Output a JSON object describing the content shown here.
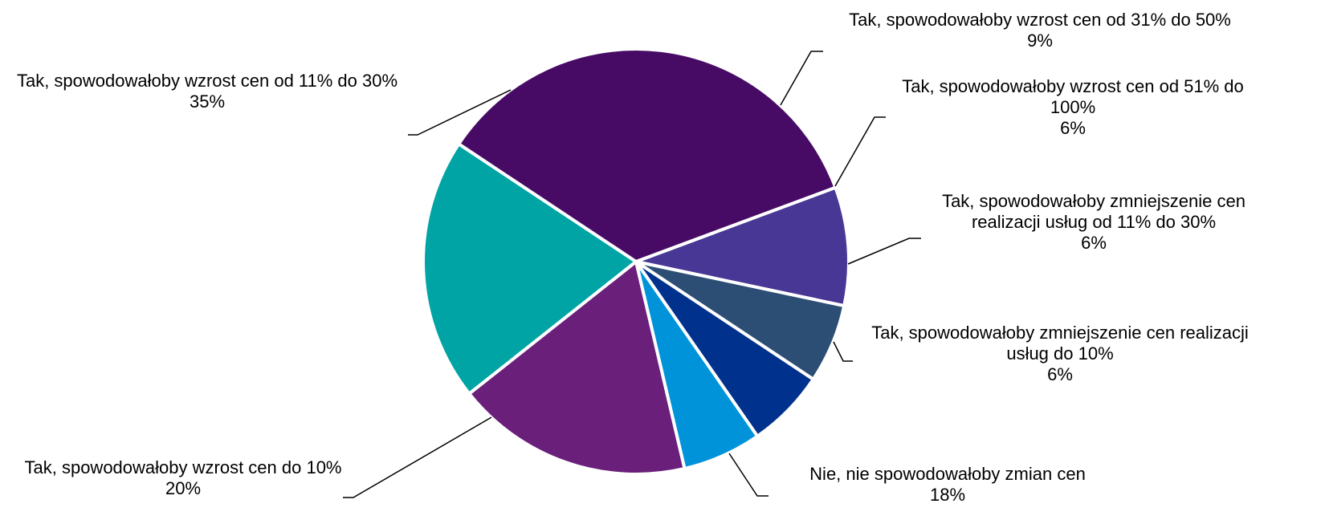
{
  "chart_data": {
    "type": "pie",
    "slices": [
      {
        "label": "Tak, spowodowałoby wzrost cen od 31% do 50%",
        "value_label": "9%",
        "value": 9,
        "color": "#483795"
      },
      {
        "label": "Tak, spowodowałoby wzrost cen od 51% do 100%",
        "value_label": "6%",
        "value": 6,
        "color": "#2c4e75"
      },
      {
        "label": "Tak, spowodowałoby zmniejszenie cen realizacji usług od 11% do 30%",
        "value_label": "6%",
        "value": 6,
        "color": "#00318c"
      },
      {
        "label": "Tak, spowodowałoby zmniejszenie cen realizacji usług do 10%",
        "value_label": "6%",
        "value": 6,
        "color": "#0093d9"
      },
      {
        "label": "Nie, nie spowodowałoby zmian cen",
        "value_label": "18%",
        "value": 18,
        "color": "#6a1f7a"
      },
      {
        "label": "Tak, spowodowałoby wzrost cen do 10%",
        "value_label": "20%",
        "value": 20,
        "color": "#00a4a4"
      },
      {
        "label": "Tak, spowodowałoby wzrost cen od 11% do 30%",
        "value_label": "35%",
        "value": 35,
        "color": "#470b66"
      }
    ],
    "labels": [
      {
        "lines": [
          "Tak, spowodowałoby wzrost cen od 31% do 50%",
          "9%"
        ]
      },
      {
        "lines": [
          "Tak, spowodowałoby wzrost cen od 51% do",
          "100%",
          "6%"
        ]
      },
      {
        "lines": [
          "Tak, spowodowałoby zmniejszenie cen",
          "realizacji usług od 11% do 30%",
          "6%"
        ]
      },
      {
        "lines": [
          "Tak, spowodowałoby zmniejszenie cen realizacji",
          "usług do 10%",
          "6%"
        ]
      },
      {
        "lines": [
          "Nie, nie spowodowałoby zmian cen",
          "18%"
        ]
      },
      {
        "lines": [
          "Tak, spowodowałoby wzrost cen do 10%",
          "20%"
        ]
      },
      {
        "lines": [
          "Tak, spowodowałoby wzrost cen od 11% do 30%",
          "35%"
        ]
      }
    ]
  }
}
